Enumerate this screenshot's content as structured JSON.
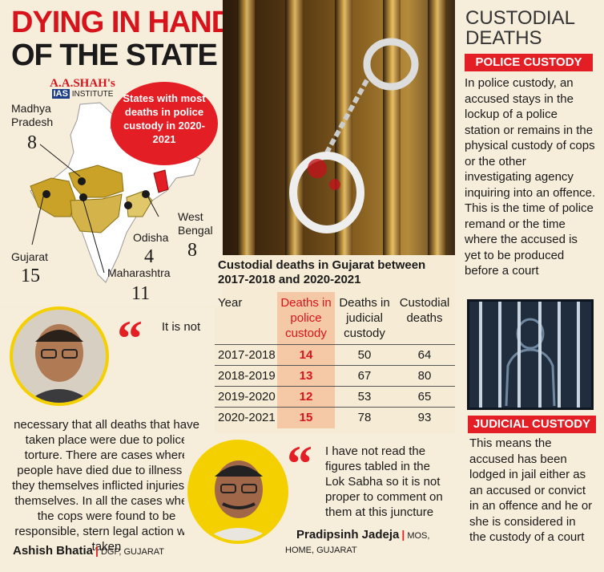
{
  "headline": {
    "line1": "DYING IN HANDS",
    "line2": "OF THE STATE"
  },
  "logo": {
    "name": "A.A.SHAH's",
    "sub_prefix": "IAS",
    "sub_rest": "INSTITUTE"
  },
  "map": {
    "circle_text": "States with most deaths in police custody in 2020-2021",
    "states": [
      {
        "name": "Madhya Pradesh",
        "value": "8"
      },
      {
        "name": "Gujarat",
        "value": "15"
      },
      {
        "name": "Maharashtra",
        "value": "11"
      },
      {
        "name": "Odisha",
        "value": "4"
      },
      {
        "name": "West Bengal",
        "value": "8"
      }
    ]
  },
  "custodial": {
    "title_l1": "CUSTODIAL",
    "title_l2": "DEATHS",
    "police_label": "POLICE CUSTODY",
    "police_text": "In police custody, an accused stays in the lockup of a police station or remains in the physical custody of cops or the other investigating agency inquiring into an offence. This is the time of police remand or the time where the accused is yet to be produced before a court",
    "judicial_label": "JUDICIAL CUSTODY",
    "judicial_text": "This means the accused has been lodged in jail either as an accused or convict in an offence and he or she is considered in the custody of a court"
  },
  "table": {
    "title": "Custodial deaths in Gujarat between 2017-2018 and 2020-2021",
    "headers": [
      "Year",
      "Deaths in police custody",
      "Deaths in judicial custody",
      "Custodial deaths"
    ],
    "rows": [
      [
        "2017-2018",
        "14",
        "50",
        "64"
      ],
      [
        "2018-2019",
        "13",
        "67",
        "80"
      ],
      [
        "2019-2020",
        "12",
        "53",
        "65"
      ],
      [
        "2020-2021",
        "15",
        "78",
        "93"
      ]
    ]
  },
  "quote1": {
    "text": "It is not necessary that all deaths that have taken place were due to police torture. There are cases where people have died due to illness or they themselves inflicted injuries on themselves. In all the cases where the cops were found to be responsible, stern legal action was taken",
    "name": "Ashish Bhatia",
    "role": "DGP, GUJARAT"
  },
  "quote2": {
    "text": "I have not read the figures tabled in the Lok Sabha so it is not proper to comment on them at this juncture",
    "name": "Pradipsinh Jadeja",
    "role1": "MOS,",
    "role2": "HOME, GUJARAT"
  },
  "colors": {
    "accent": "#e31e24",
    "highlight": "#f6c9a6",
    "background": "#f7eddb"
  }
}
